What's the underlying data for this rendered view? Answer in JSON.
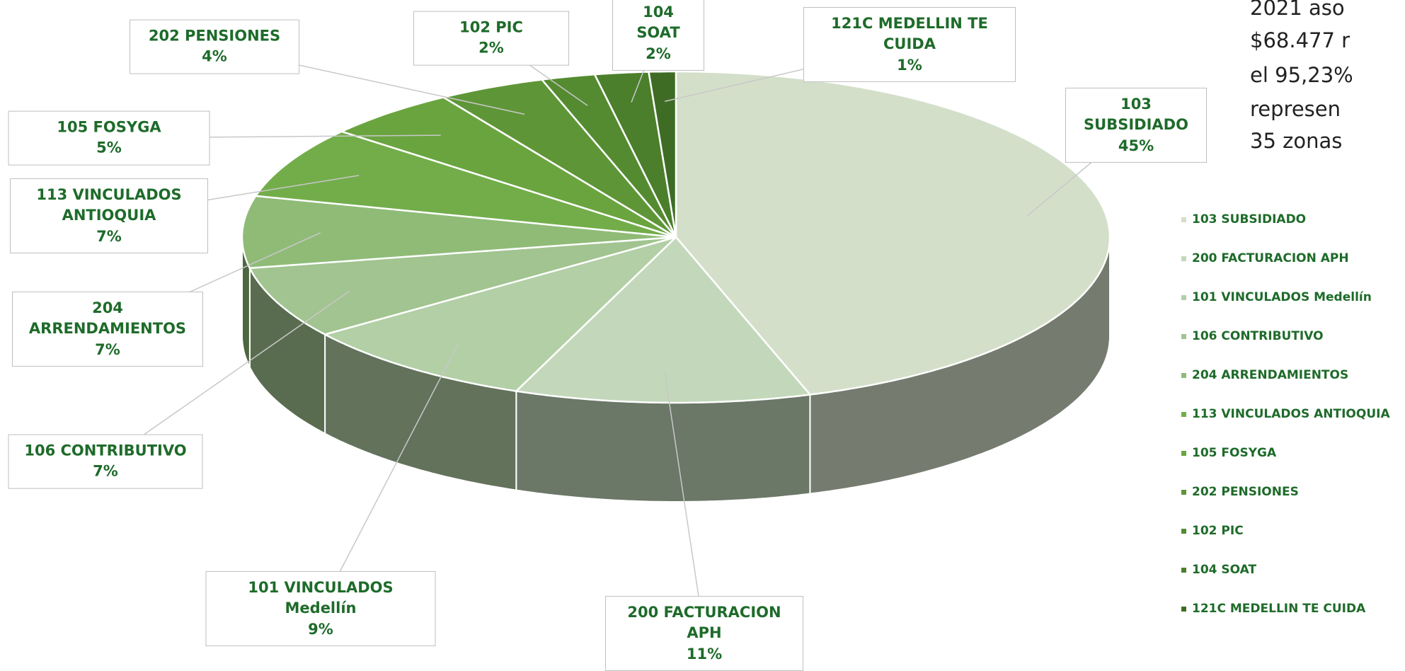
{
  "chart_data": {
    "type": "pie3d",
    "categories": [
      "103 SUBSIDIADO",
      "200 FACTURACION APH",
      "101 VINCULADOS Medellín",
      "106 CONTRIBUTIVO",
      "204 ARRENDAMIENTOS",
      "113 VINCULADOS ANTIOQUIA",
      "105 FOSYGA",
      "202 PENSIONES",
      "102 PIC",
      "104 SOAT",
      "121C MEDELLIN TE CUIDA"
    ],
    "values": [
      45,
      11,
      9,
      7,
      7,
      7,
      5,
      4,
      2,
      2,
      1
    ],
    "value_labels": [
      "45%",
      "11%",
      "9%",
      "7%",
      "7%",
      "7%",
      "5%",
      "4%",
      "2%",
      "2%",
      "1%"
    ],
    "colors": [
      "#d4dfc9",
      "#c3d8bb",
      "#b2cfa6",
      "#a1c490",
      "#8fbb77",
      "#72ad4a",
      "#6aa43f",
      "#5e9637",
      "#548b31",
      "#4b7f2c",
      "#3f6c25"
    ],
    "legend": "right",
    "side_text": [
      "2021 aso",
      "$68.477 r",
      "el 95,23%",
      "represen",
      "35 zonas"
    ]
  }
}
